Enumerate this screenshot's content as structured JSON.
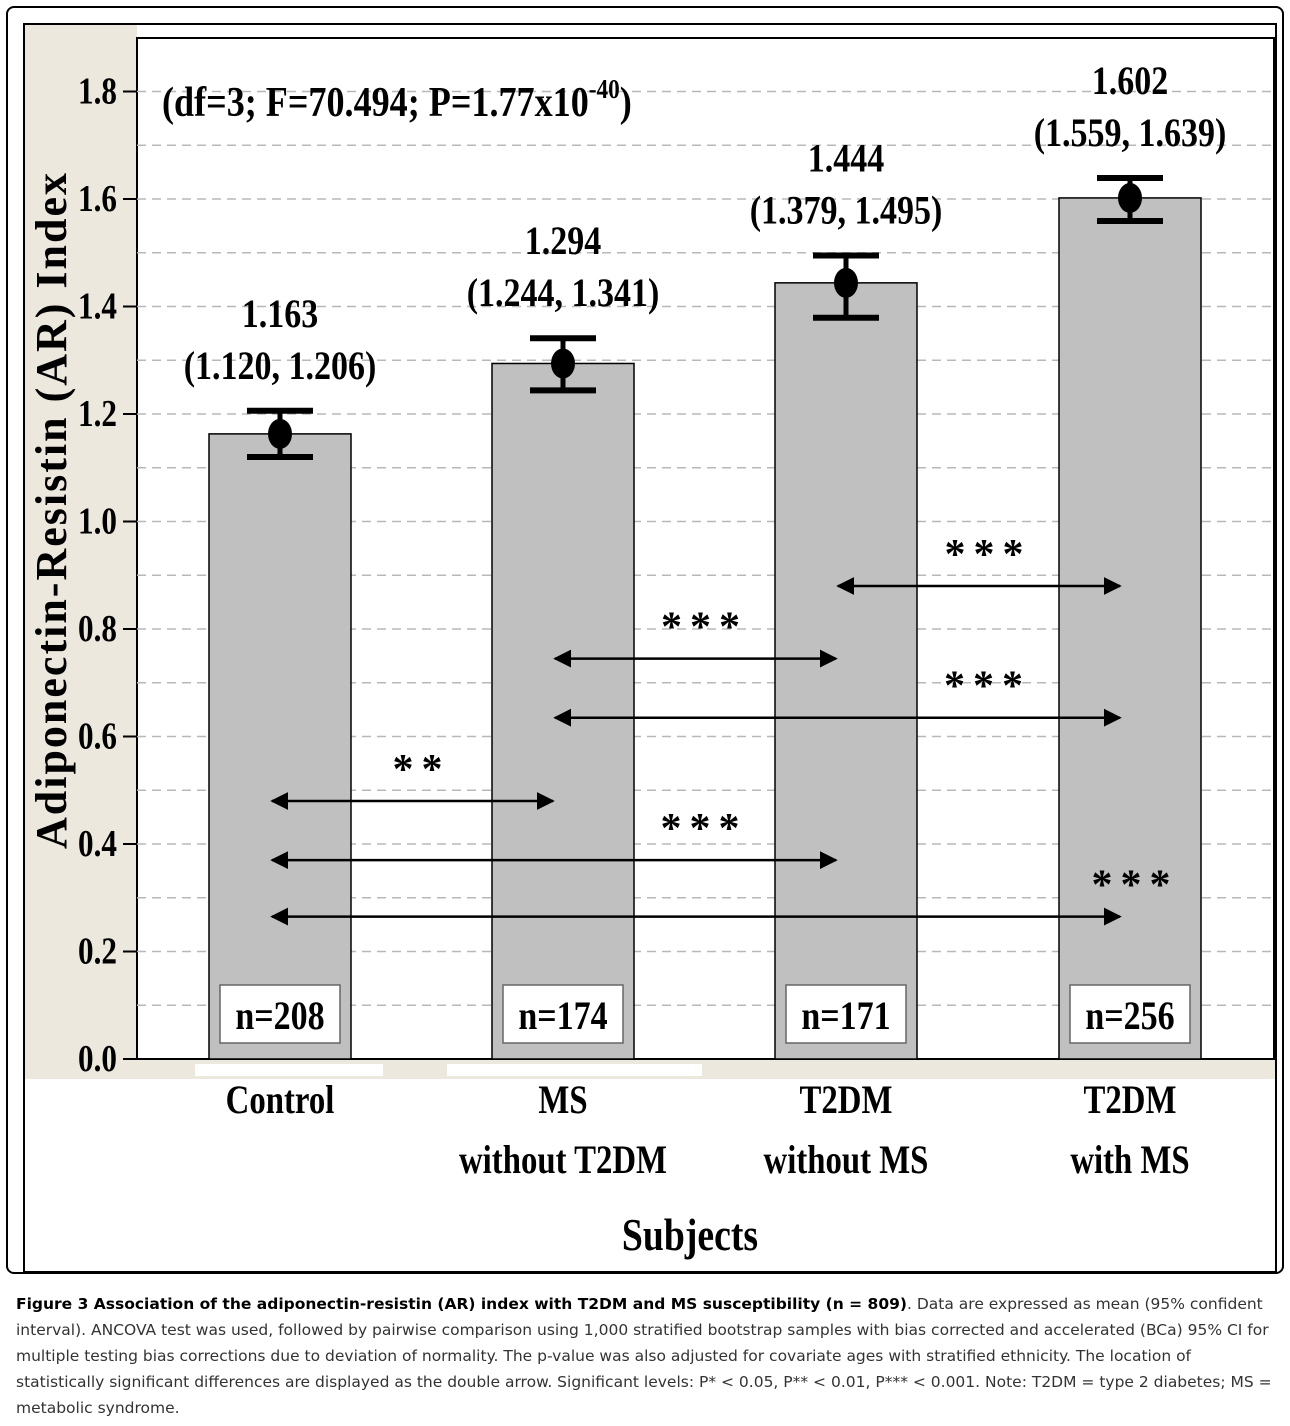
{
  "chart_data": {
    "type": "bar",
    "ylabel": "Adiponectin-Resistin (AR) Index",
    "xlabel": "Subjects",
    "ylim": [
      0,
      1.9
    ],
    "yticks": [
      "0.0",
      "0.2",
      "0.4",
      "0.6",
      "0.8",
      "1.0",
      "1.2",
      "1.4",
      "1.6",
      "1.8"
    ],
    "grid": true,
    "stat_text_main": "(df=3; F=70.494; P=1.77x10",
    "stat_text_exp": "-40",
    "stat_text_end": ")",
    "categories": [
      {
        "line1": "Control",
        "line2": ""
      },
      {
        "line1": "MS",
        "line2": "without T2DM"
      },
      {
        "line1": "T2DM",
        "line2": "without MS"
      },
      {
        "line1": "T2DM",
        "line2": "with MS"
      }
    ],
    "values": [
      1.163,
      1.294,
      1.444,
      1.602
    ],
    "ci_low": [
      1.12,
      1.244,
      1.379,
      1.559
    ],
    "ci_high": [
      1.206,
      1.341,
      1.495,
      1.639
    ],
    "mean_labels": [
      "1.163",
      "1.294",
      "1.444",
      "1.602"
    ],
    "ci_labels": [
      "(1.120, 1.206)",
      "(1.244, 1.341)",
      "(1.379, 1.495)",
      "(1.559, 1.639)"
    ],
    "n_labels": [
      "n=208",
      "n=174",
      "n=171",
      "n=256"
    ],
    "comparisons": [
      {
        "from": 2,
        "to": 3,
        "y": 0.88,
        "label": "***"
      },
      {
        "from": 1,
        "to": 2,
        "y": 0.745,
        "label": "***"
      },
      {
        "from": 1,
        "to": 3,
        "y": 0.635,
        "label": "***"
      },
      {
        "from": 0,
        "to": 1,
        "y": 0.48,
        "label": "**"
      },
      {
        "from": 0,
        "to": 2,
        "y": 0.37,
        "label": "***"
      },
      {
        "from": 0,
        "to": 3,
        "y": 0.265,
        "label": "***"
      }
    ],
    "colors": {
      "bar": "#c0c0c0",
      "grid": "#b8b8b8",
      "axis_band": "#ede8de"
    }
  },
  "caption": {
    "title": "Figure 3 Association of the adiponectin-resistin (AR) index with T2DM and MS susceptibility (n = 809)",
    "body": ". Data are expressed as mean (95% confident interval). ANCOVA test was used, followed by pairwise comparison using 1,000 stratified bootstrap samples with bias corrected and accelerated (BCa) 95% CI for multiple testing bias corrections due to deviation of normality. The p-value was also adjusted for covariate ages with stratified ethnicity. The location of statistically significant differences are displayed as the double arrow. Significant levels: P* < 0.05, P** < 0.01, P*** < 0.001. Note: T2DM = type 2 diabetes; MS = metabolic syndrome."
  }
}
